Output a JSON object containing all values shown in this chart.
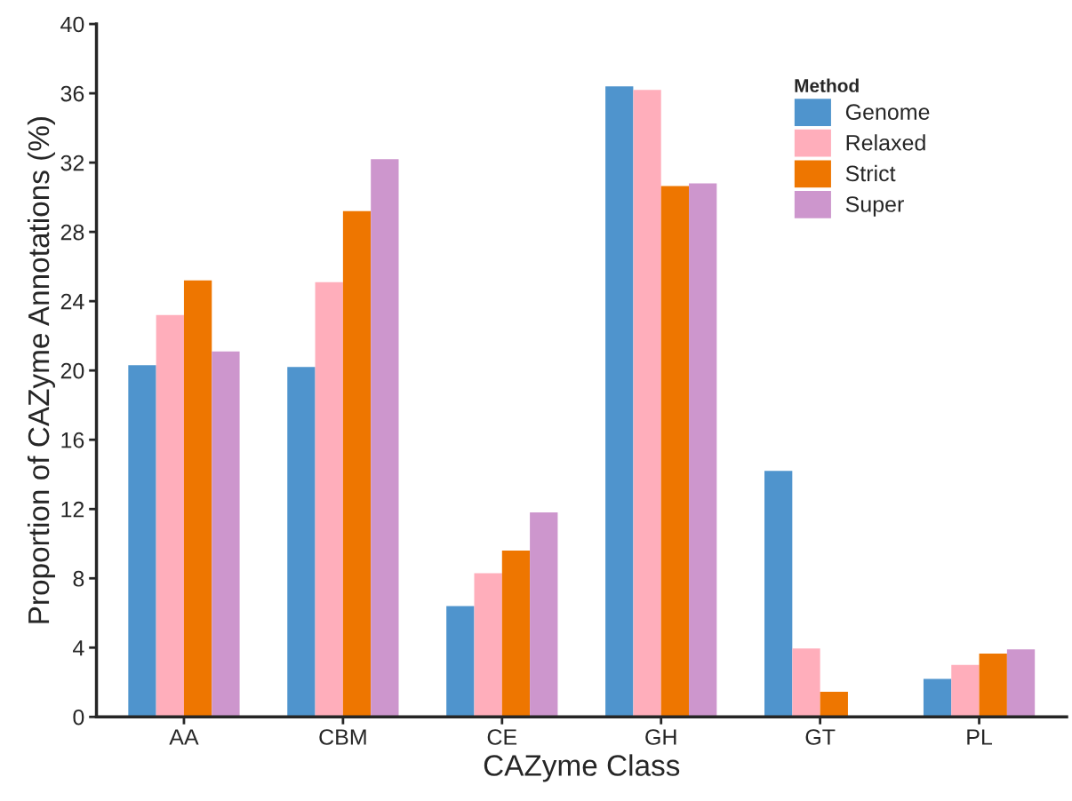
{
  "chart_data": {
    "type": "bar",
    "xlabel": "CAZyme Class",
    "ylabel": "Proportion of CAZyme Annotations (%)",
    "legend_title": "Method",
    "categories": [
      "AA",
      "CBM",
      "CE",
      "GH",
      "GT",
      "PL"
    ],
    "series": [
      {
        "name": "Genome",
        "color": "#4f94cd",
        "values": [
          20.3,
          20.2,
          6.4,
          36.4,
          14.2,
          2.2
        ]
      },
      {
        "name": "Relaxed",
        "color": "#ffaebb",
        "values": [
          23.2,
          25.1,
          8.3,
          36.2,
          3.95,
          3.0
        ]
      },
      {
        "name": "Strict",
        "color": "#ee7600",
        "values": [
          25.2,
          29.2,
          9.6,
          30.65,
          1.45,
          3.65
        ]
      },
      {
        "name": "Super",
        "color": "#cd96cd",
        "values": [
          21.1,
          32.2,
          11.8,
          30.8,
          null,
          3.9
        ]
      }
    ],
    "ylim": [
      0,
      40
    ],
    "yticks": [
      0,
      4,
      8,
      12,
      16,
      20,
      24,
      28,
      32,
      36,
      40
    ],
    "grid": false,
    "legend": "top right"
  }
}
